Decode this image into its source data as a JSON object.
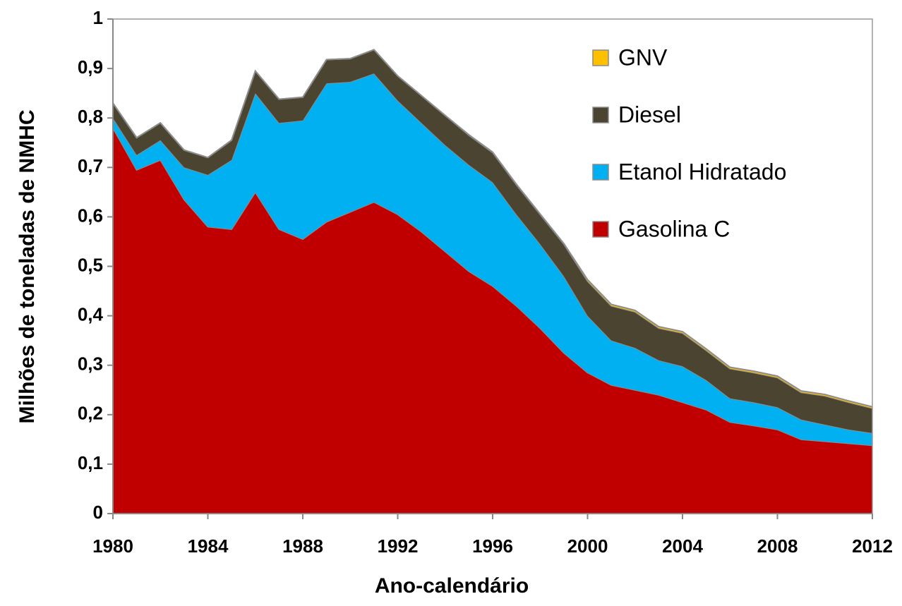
{
  "chart_data": {
    "type": "stacked_area",
    "x_label": "Ano-calendário",
    "y_label": "Milhões de toneladas de NMHC",
    "x": [
      1980,
      1981,
      1982,
      1983,
      1984,
      1985,
      1986,
      1987,
      1988,
      1989,
      1990,
      1991,
      1992,
      1993,
      1994,
      1995,
      1996,
      1997,
      1998,
      1999,
      2000,
      2001,
      2002,
      2003,
      2004,
      2005,
      2006,
      2007,
      2008,
      2009,
      2010,
      2011,
      2012
    ],
    "series": [
      {
        "name": "Gasolina C",
        "color": "#c00000",
        "values": [
          0.78,
          0.695,
          0.715,
          0.635,
          0.58,
          0.575,
          0.65,
          0.575,
          0.555,
          0.59,
          0.61,
          0.63,
          0.605,
          0.57,
          0.53,
          0.49,
          0.46,
          0.42,
          0.375,
          0.325,
          0.285,
          0.26,
          0.25,
          0.24,
          0.225,
          0.21,
          0.185,
          0.178,
          0.17,
          0.15,
          0.146,
          0.142,
          0.138
        ]
      },
      {
        "name": "Etanol Hidratado",
        "color": "#00b0f0",
        "values": [
          0.02,
          0.03,
          0.04,
          0.065,
          0.105,
          0.14,
          0.2,
          0.215,
          0.24,
          0.28,
          0.263,
          0.26,
          0.23,
          0.22,
          0.215,
          0.215,
          0.21,
          0.185,
          0.17,
          0.155,
          0.115,
          0.09,
          0.085,
          0.07,
          0.073,
          0.06,
          0.048,
          0.047,
          0.045,
          0.04,
          0.034,
          0.028,
          0.025
        ]
      },
      {
        "name": "Diesel",
        "color": "#4a4430",
        "values": [
          0.03,
          0.035,
          0.035,
          0.035,
          0.035,
          0.04,
          0.045,
          0.048,
          0.047,
          0.048,
          0.047,
          0.048,
          0.05,
          0.055,
          0.06,
          0.06,
          0.06,
          0.06,
          0.06,
          0.065,
          0.07,
          0.07,
          0.073,
          0.065,
          0.067,
          0.06,
          0.06,
          0.06,
          0.06,
          0.055,
          0.058,
          0.055,
          0.05
        ]
      },
      {
        "name": "GNV",
        "color": "#ffc000",
        "values": [
          0,
          0,
          0,
          0,
          0,
          0,
          0,
          0,
          0,
          0,
          0,
          0,
          0,
          0,
          0,
          0.001,
          0.001,
          0.001,
          0.001,
          0.001,
          0.003,
          0.003,
          0.003,
          0.003,
          0.003,
          0.003,
          0.003,
          0.003,
          0.003,
          0.003,
          0.003,
          0.003,
          0.003
        ]
      }
    ],
    "xlim": [
      1980,
      2012
    ],
    "xticks": [
      1980,
      1984,
      1988,
      1992,
      1996,
      2000,
      2004,
      2008,
      2012
    ],
    "ylim": [
      0,
      1
    ],
    "yticks": [
      0,
      {
        "value": 0.1,
        "label": "0,1"
      },
      {
        "value": 0.2,
        "label": "0,2"
      },
      {
        "value": 0.3,
        "label": "0,3"
      },
      {
        "value": 0.4,
        "label": "0,4"
      },
      {
        "value": 0.5,
        "label": "0,5"
      },
      {
        "value": 0.6,
        "label": "0,6"
      },
      {
        "value": 0.7,
        "label": "0,7"
      },
      {
        "value": 0.8,
        "label": "0,8"
      },
      {
        "value": 0.9,
        "label": "0,9"
      },
      1
    ],
    "grid": false,
    "legend": "upper right"
  }
}
